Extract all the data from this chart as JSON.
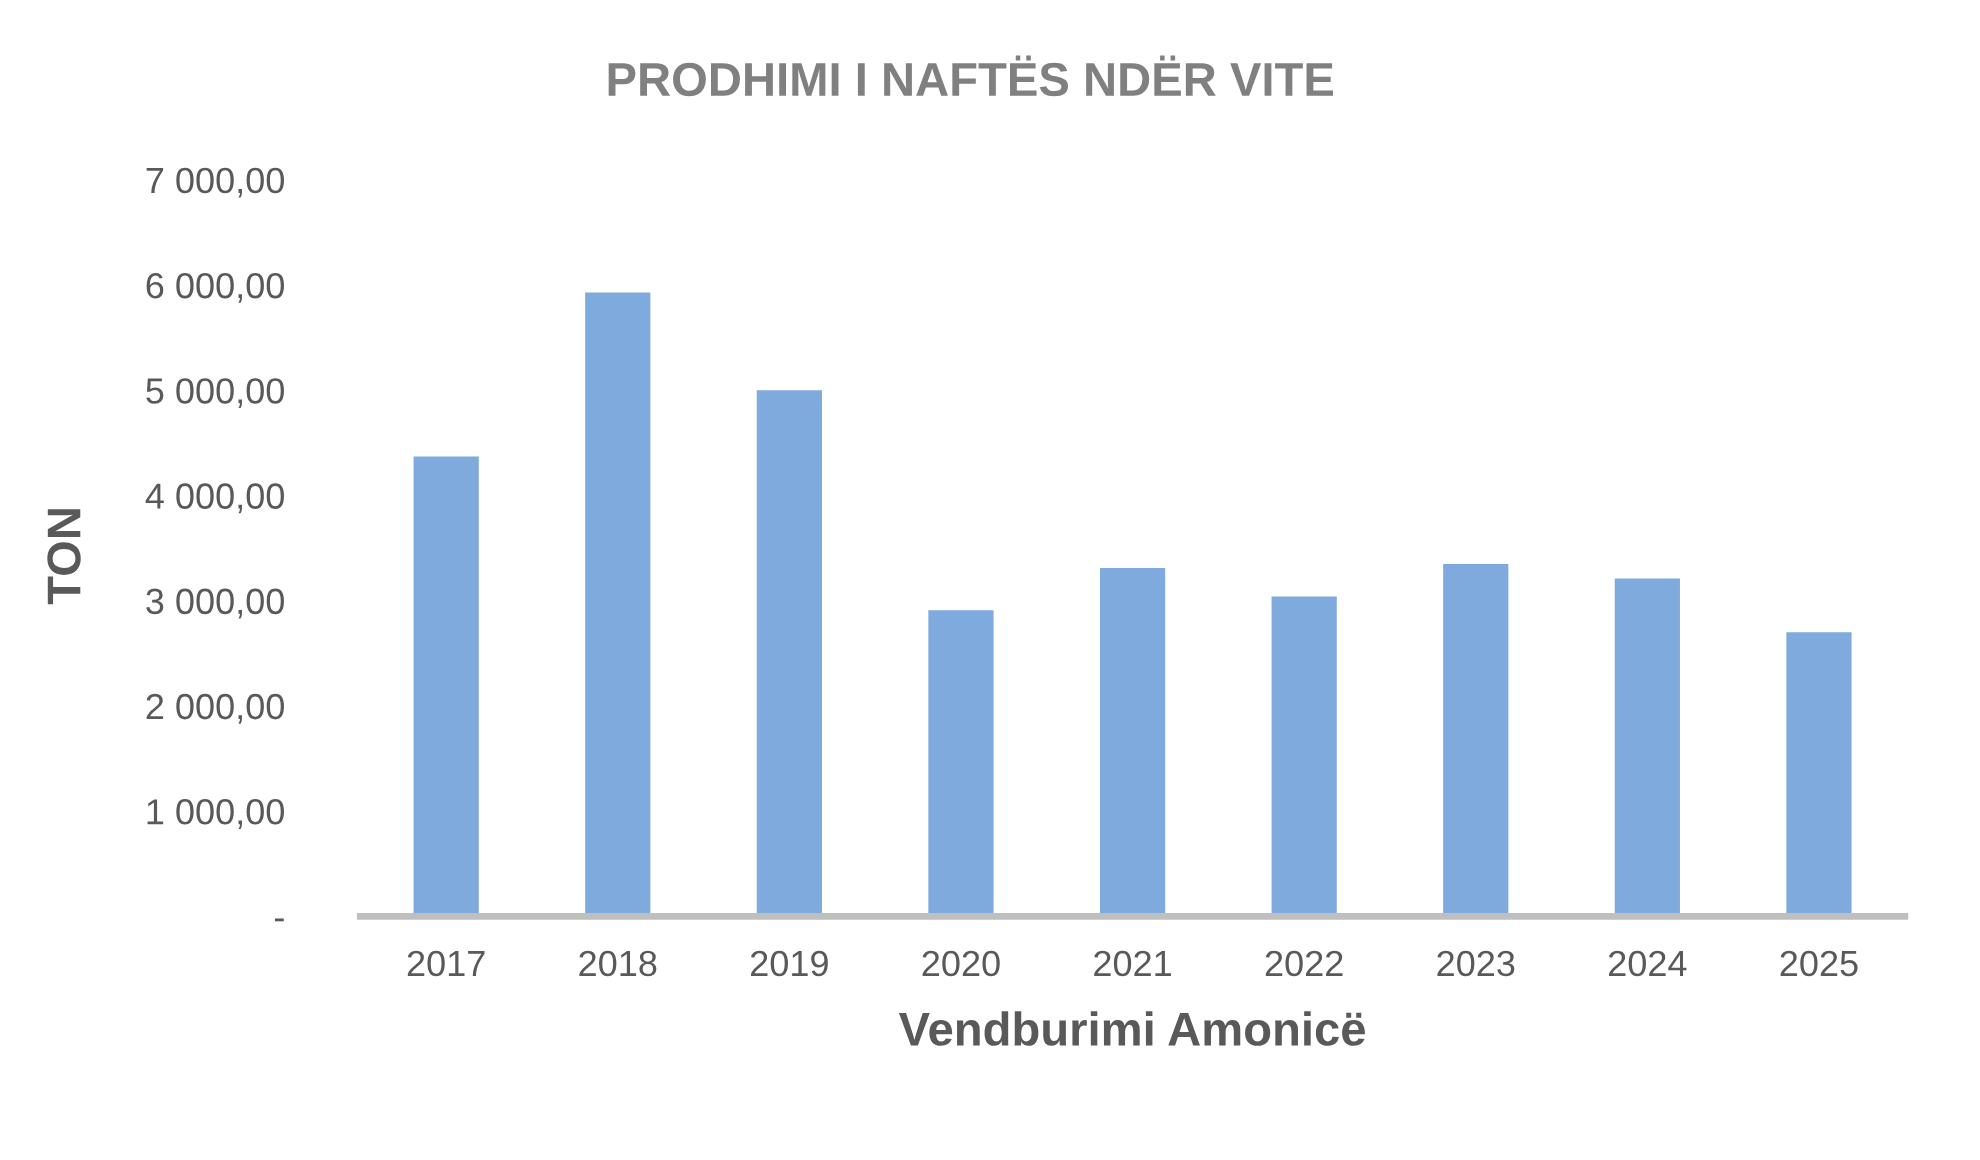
{
  "chart_data": {
    "type": "bar",
    "title": "PRODHIMI I NAFTËS NDËR VITE",
    "xlabel": "Vendburimi Amonicë",
    "ylabel": "TON",
    "categories": [
      "2017",
      "2018",
      "2019",
      "2020",
      "2021",
      "2022",
      "2023",
      "2024",
      "2025"
    ],
    "values": [
      4370,
      5930,
      5000,
      2910,
      3310,
      3040,
      3350,
      3210,
      2700
    ],
    "color": "#7eaadd",
    "ylim": [
      0,
      7000
    ],
    "yticks": [
      {
        "value": 0,
        "label": "-"
      },
      {
        "value": 1000,
        "label": "1 000,00"
      },
      {
        "value": 2000,
        "label": "2 000,00"
      },
      {
        "value": 3000,
        "label": "3 000,00"
      },
      {
        "value": 4000,
        "label": "4 000,00"
      },
      {
        "value": 5000,
        "label": "5 000,00"
      },
      {
        "value": 6000,
        "label": "6 000,00"
      },
      {
        "value": 7000,
        "label": "7 000,00"
      }
    ]
  }
}
